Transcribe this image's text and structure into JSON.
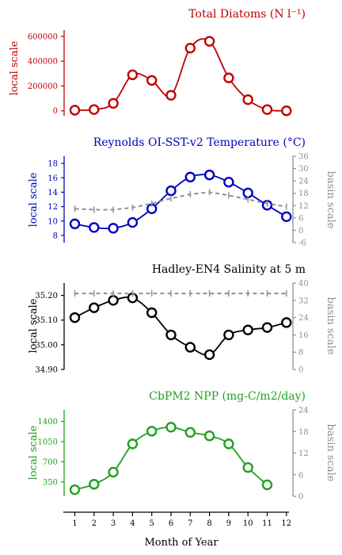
{
  "figure": {
    "xlabel": "Month of Year",
    "xticks": [
      "1",
      "2",
      "3",
      "4",
      "5",
      "6",
      "7",
      "8",
      "9",
      "10",
      "11",
      "12"
    ]
  },
  "chart_data": [
    {
      "type": "line",
      "title": "Total Diatoms (N l⁻¹)",
      "color": "#c00000",
      "ylabel_left": "local scale",
      "ylim": [
        -40000,
        650000
      ],
      "yticks": [
        "0",
        "200000",
        "400000",
        "600000"
      ],
      "x": [
        1,
        2,
        3,
        4,
        5,
        6,
        7,
        8,
        9,
        10,
        11,
        12
      ],
      "series": [
        {
          "values": [
            5000,
            10000,
            60000,
            290000,
            245000,
            125000,
            505000,
            560000,
            265000,
            90000,
            10000,
            0
          ]
        }
      ]
    },
    {
      "type": "line",
      "title": "Reynolds OI-SST-v2 Temperature (°C)",
      "color": "#0000c0",
      "ylabel_left": "local scale",
      "ylabel_right": "basin scale",
      "ylim": [
        7,
        19
      ],
      "yticks": [
        "8",
        "10",
        "12",
        "14",
        "16",
        "18"
      ],
      "ylim_right": [
        -6,
        36
      ],
      "yticks_right": [
        "-6",
        "0",
        "6",
        "12",
        "18",
        "24",
        "30",
        "36"
      ],
      "x": [
        1,
        2,
        3,
        4,
        5,
        6,
        7,
        8,
        9,
        10,
        11,
        12
      ],
      "series": [
        {
          "values": [
            9.6,
            9.1,
            9.0,
            9.8,
            11.7,
            14.2,
            16.1,
            16.4,
            15.4,
            13.9,
            12.2,
            10.6
          ]
        },
        {
          "axis": "right",
          "values": [
            10.5,
            10.0,
            10.0,
            11.0,
            13.0,
            15.5,
            17.5,
            18.5,
            17.0,
            15.0,
            13.0,
            11.5
          ]
        }
      ]
    },
    {
      "type": "line",
      "title": "Hadley-EN4 Salinity at 5 m",
      "color": "#000000",
      "ylabel_left": "local scale",
      "ylabel_right": "basin scale",
      "ylim": [
        34.9,
        35.25
      ],
      "yticks": [
        "34.90",
        "35.00",
        "35.10",
        "35.20"
      ],
      "ylim_right": [
        0,
        40
      ],
      "yticks_right": [
        "0",
        "8",
        "16",
        "24",
        "32",
        "40"
      ],
      "x": [
        1,
        2,
        3,
        4,
        5,
        6,
        7,
        8,
        9,
        10,
        11,
        12
      ],
      "series": [
        {
          "values": [
            35.11,
            35.15,
            35.18,
            35.19,
            35.13,
            35.04,
            34.99,
            34.96,
            35.04,
            35.06,
            35.07,
            35.09
          ]
        },
        {
          "axis": "right",
          "values": [
            35.2,
            35.2,
            35.2,
            35.2,
            35.2,
            35.2,
            35.2,
            35.2,
            35.2,
            35.2,
            35.2,
            35.2
          ]
        }
      ]
    },
    {
      "type": "line",
      "title": "CbPM2 NPP (mg-C/m2/day)",
      "color": "#20a020",
      "ylabel_left": "local scale",
      "ylabel_right": "basin scale",
      "ylim": [
        100,
        1600
      ],
      "yticks": [
        "350",
        "700",
        "1050",
        "1400"
      ],
      "ylim_right": [
        0,
        24
      ],
      "yticks_right": [
        "0",
        "6",
        "12",
        "18",
        "24"
      ],
      "x": [
        1,
        2,
        3,
        4,
        5,
        6,
        7,
        8,
        9,
        10,
        11
      ],
      "series": [
        {
          "values": [
            215,
            310,
            520,
            1010,
            1230,
            1300,
            1210,
            1150,
            1010,
            600,
            300
          ]
        }
      ]
    }
  ]
}
